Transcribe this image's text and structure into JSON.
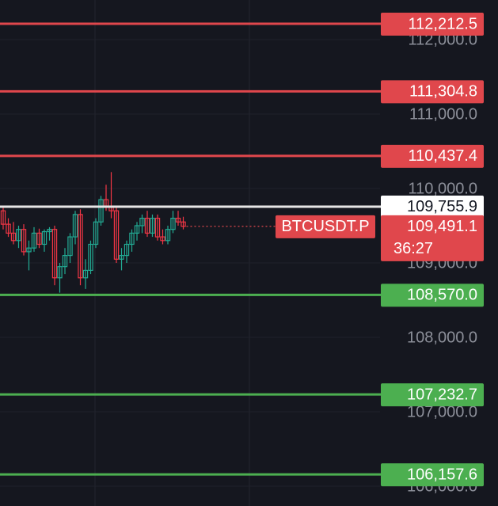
{
  "chart_data": {
    "type": "candlestick",
    "ylim": [
      105734,
      112532
    ],
    "yticks": [
      {
        "value": 112000,
        "label": "112,000.0"
      },
      {
        "value": 111000,
        "label": "111,000.0"
      },
      {
        "value": 110000,
        "label": "110,000.0"
      },
      {
        "value": 109000,
        "label": "109,000.0"
      },
      {
        "value": 108000,
        "label": "108,000.0"
      },
      {
        "value": 107000,
        "label": "107,000.0"
      },
      {
        "value": 106000,
        "label": "106,000.0"
      }
    ],
    "up_color": "#22ab94",
    "down_color": "#f23645",
    "open": [
      109700,
      109520,
      109400,
      109300,
      109450,
      109150,
      109200,
      109400,
      109250,
      109420,
      109450,
      108800,
      108950,
      109100,
      109350,
      109650,
      108800,
      108900,
      109250,
      109550,
      109850,
      109750,
      109700,
      109050,
      109100,
      109250,
      109400,
      109500,
      109600,
      109400,
      109600,
      109350,
      109300,
      109450,
      109600,
      109550
    ],
    "high": [
      109760,
      109600,
      109550,
      109500,
      109520,
      109300,
      109480,
      109460,
      109450,
      109480,
      109500,
      109000,
      109200,
      109400,
      109700,
      109720,
      109050,
      109300,
      109600,
      109900,
      110050,
      110220,
      109750,
      109200,
      109300,
      109450,
      109550,
      109650,
      109700,
      109650,
      109650,
      109450,
      109500,
      109700,
      109700,
      109620
    ],
    "low": [
      109450,
      109350,
      109250,
      109200,
      109100,
      108900,
      109150,
      109200,
      109150,
      109300,
      108700,
      108600,
      108850,
      109000,
      109250,
      108700,
      108650,
      108850,
      109200,
      109500,
      109700,
      109600,
      109000,
      108900,
      109000,
      109150,
      109300,
      109400,
      109350,
      109350,
      109300,
      109250,
      109250,
      109400,
      109500,
      109450
    ],
    "close": [
      109520,
      109400,
      109300,
      109450,
      109150,
      109200,
      109400,
      109250,
      109420,
      109450,
      108800,
      108950,
      109100,
      109350,
      109650,
      108800,
      108900,
      109250,
      109550,
      109850,
      109750,
      109700,
      109050,
      109100,
      109250,
      109400,
      109500,
      109600,
      109400,
      109600,
      109350,
      109300,
      109450,
      109600,
      109550,
      109491.1
    ],
    "levels": [
      {
        "value": 112212.5,
        "label": "112,212.5",
        "color": "#e0474c"
      },
      {
        "value": 111304.8,
        "label": "111,304.8",
        "color": "#e0474c"
      },
      {
        "value": 110437.4,
        "label": "110,437.4",
        "color": "#e0474c"
      },
      {
        "value": 109755.9,
        "label": "109,755.9",
        "color": "#e6e6e6"
      },
      {
        "value": 108570.0,
        "label": "108,570.0",
        "color": "#4caf50"
      },
      {
        "value": 107232.7,
        "label": "107,232.7",
        "color": "#4caf50"
      },
      {
        "value": 106157.6,
        "label": "106,157.6",
        "color": "#4caf50"
      }
    ],
    "current": {
      "value": 109491.1,
      "label": "109,491.1",
      "symbol": "BTCUSDT.P",
      "countdown": "36:27",
      "color": "#e0474c"
    }
  }
}
